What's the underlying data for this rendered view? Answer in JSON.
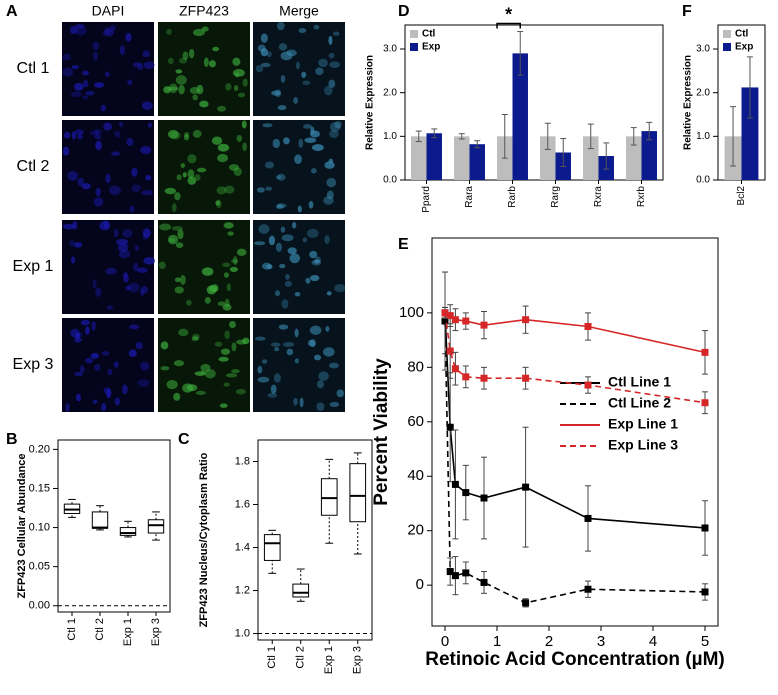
{
  "image_panel": {
    "label": "A",
    "columns": [
      "DAPI",
      "ZFP423",
      "Merge"
    ],
    "rows": [
      "Ctl 1",
      "Ctl 2",
      "Exp 1",
      "Exp 3"
    ]
  },
  "chart_data": [
    {
      "type": "box",
      "label": "B",
      "y_label": "ZFP423 Cellular Abundance",
      "categories": [
        "Ctl 1",
        "Ctl 2",
        "Exp 1",
        "Exp 3"
      ],
      "boxes": [
        {
          "min": 0.113,
          "q1": 0.118,
          "median": 0.123,
          "q3": 0.13,
          "max": 0.136
        },
        {
          "min": 0.097,
          "q1": 0.099,
          "median": 0.1,
          "q3": 0.12,
          "max": 0.128
        },
        {
          "min": 0.088,
          "q1": 0.09,
          "median": 0.093,
          "q3": 0.1,
          "max": 0.108
        },
        {
          "min": 0.084,
          "q1": 0.093,
          "median": 0.103,
          "q3": 0.11,
          "max": 0.12
        }
      ],
      "reference_line": 0,
      "ylim": [
        -0.008,
        0.212
      ],
      "yticks": [
        {
          "value": 0,
          "label": "0.00"
        },
        {
          "value": 0.05,
          "label": "0.05"
        },
        {
          "value": 0.1,
          "label": "0.10"
        },
        {
          "value": 0.15,
          "label": "0.15"
        },
        {
          "value": 0.2,
          "label": "0.20"
        }
      ]
    },
    {
      "type": "box",
      "label": "C",
      "y_label": "ZFP423 Nucleus/Cytoplasm Ratio",
      "categories": [
        "Ctl 1",
        "Ctl 2",
        "Exp 1",
        "Exp 3"
      ],
      "boxes": [
        {
          "min": 1.28,
          "q1": 1.34,
          "median": 1.42,
          "q3": 1.46,
          "max": 1.48
        },
        {
          "min": 1.15,
          "q1": 1.17,
          "median": 1.19,
          "q3": 1.23,
          "max": 1.3
        },
        {
          "min": 1.42,
          "q1": 1.55,
          "median": 1.63,
          "q3": 1.72,
          "max": 1.81
        },
        {
          "min": 1.37,
          "q1": 1.52,
          "median": 1.64,
          "q3": 1.79,
          "max": 1.84
        }
      ],
      "reference_line": 1,
      "ylim": [
        0.97,
        1.9
      ],
      "yticks": [
        {
          "value": 1,
          "label": "1.0"
        },
        {
          "value": 1.2,
          "label": "1.2"
        },
        {
          "value": 1.4,
          "label": "1.4"
        },
        {
          "value": 1.6,
          "label": "1.6"
        },
        {
          "value": 1.8,
          "label": "1.8"
        }
      ]
    },
    {
      "type": "bar",
      "label": "D",
      "y_label": "Relative Expression",
      "categories": [
        "Ppard",
        "Rara",
        "Rarb",
        "Rarg",
        "Rxra",
        "Rxrb"
      ],
      "series": [
        {
          "name": "Ctl",
          "color": "#bdbdbd",
          "values": [
            1,
            1,
            1,
            1,
            1,
            1
          ],
          "errors": [
            0.12,
            0.06,
            0.5,
            0.3,
            0.28,
            0.2
          ]
        },
        {
          "name": "Exp",
          "color": "#0b1a8c",
          "values": [
            1.07,
            0.82,
            2.9,
            0.63,
            0.55,
            1.12
          ],
          "errors": [
            0.1,
            0.08,
            0.5,
            0.32,
            0.3,
            0.2
          ]
        }
      ],
      "annotation": "*",
      "ylim": [
        0,
        3.55
      ],
      "yticks": [
        {
          "value": 0,
          "label": "0.0"
        },
        {
          "value": 1,
          "label": "1.0"
        },
        {
          "value": 2,
          "label": "2.0"
        },
        {
          "value": 3,
          "label": "3.0"
        }
      ]
    },
    {
      "type": "bar",
      "label": "F",
      "y_label": "Relative Expression",
      "categories": [
        "Bcl2"
      ],
      "series": [
        {
          "name": "Ctl",
          "color": "#bdbdbd",
          "values": [
            1
          ],
          "errors": [
            0.68
          ]
        },
        {
          "name": "Exp",
          "color": "#0b1a8c",
          "values": [
            2.12
          ],
          "errors": [
            0.7
          ]
        }
      ],
      "ylim": [
        0,
        3.55
      ],
      "yticks": [
        {
          "value": 0,
          "label": "0.0"
        },
        {
          "value": 1,
          "label": "1.0"
        },
        {
          "value": 2,
          "label": "2.0"
        },
        {
          "value": 3,
          "label": "3.0"
        }
      ]
    },
    {
      "type": "line",
      "label": "E",
      "x_label": "Retinoic Acid Concentration (µM)",
      "y_label": "Percent Viability",
      "x": [
        0,
        0.1,
        0.2,
        0.4,
        0.75,
        1.55,
        2.75,
        5
      ],
      "series": [
        {
          "name": "Ctl Line 1",
          "color": "#000000",
          "dashed": false,
          "values": [
            100,
            58,
            37,
            34,
            32,
            36,
            24.5,
            21
          ],
          "errors": [
            15,
            20,
            20,
            10,
            15,
            22,
            12,
            10
          ]
        },
        {
          "name": "Ctl Line 2",
          "color": "#000000",
          "dashed": true,
          "values": [
            97,
            5,
            3.5,
            4.5,
            1,
            -6.5,
            -1.5,
            -2.5
          ],
          "errors": [
            18,
            5,
            7,
            4,
            4,
            1.5,
            3,
            3
          ]
        },
        {
          "name": "Exp Line 1",
          "color": "#d62728",
          "dashed": false,
          "values": [
            100,
            99,
            97.5,
            97,
            95.5,
            97.5,
            95,
            85.5
          ],
          "errors": [
            2,
            4,
            4,
            3,
            5,
            5,
            5,
            8
          ]
        },
        {
          "name": "Exp Line 3",
          "color": "#d62728",
          "dashed": true,
          "values": [
            100,
            86,
            79.5,
            76.5,
            76,
            76,
            73.5,
            67
          ],
          "errors": [
            2,
            10,
            6,
            4,
            4,
            4,
            3,
            4
          ]
        }
      ],
      "xlim": [
        -0.25,
        5.25
      ],
      "xticks": [
        0,
        1,
        2,
        3,
        4,
        5
      ],
      "ylim": [
        -15,
        127.5
      ],
      "yticks": [
        0,
        20,
        40,
        60,
        80,
        100
      ]
    }
  ]
}
